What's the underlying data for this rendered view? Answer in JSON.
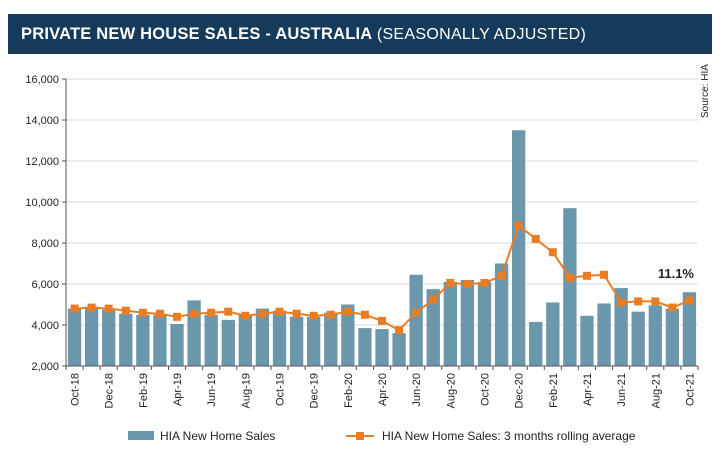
{
  "header": {
    "title": "PRIVATE NEW HOUSE SALES -  AUSTRALIA",
    "subtitle": "(SEASONALLY ADJUSTED)"
  },
  "chart_data": {
    "type": "bar+line",
    "source": "Source: HIA",
    "annotation": "11.1%",
    "y_ticks": [
      "2,000",
      "4,000",
      "6,000",
      "8,000",
      "10,000",
      "12,000",
      "14,000",
      "16,000"
    ],
    "ylim": [
      2000,
      16000
    ],
    "categories": [
      "Oct-18",
      "Nov-18",
      "Dec-18",
      "Jan-19",
      "Feb-19",
      "Mar-19",
      "Apr-19",
      "May-19",
      "Jun-19",
      "Jul-19",
      "Aug-19",
      "Sep-19",
      "Oct-19",
      "Nov-19",
      "Dec-19",
      "Jan-20",
      "Feb-20",
      "Mar-20",
      "Apr-20",
      "May-20",
      "Jun-20",
      "Jul-20",
      "Aug-20",
      "Sep-20",
      "Oct-20",
      "Nov-20",
      "Dec-20",
      "Jan-21",
      "Feb-21",
      "Mar-21",
      "Apr-21",
      "May-21",
      "Jun-21",
      "Jul-21",
      "Aug-21",
      "Sep-21",
      "Oct-21"
    ],
    "x_tick_labels": [
      "Oct-18",
      "Dec-18",
      "Feb-19",
      "Apr-19",
      "Jun-19",
      "Aug-19",
      "Oct-19",
      "Dec-19",
      "Feb-20",
      "Apr-20",
      "Jun-20",
      "Aug-20",
      "Oct-20",
      "Dec-20",
      "Feb-21",
      "Apr-21",
      "Jun-21",
      "Aug-21",
      "Oct-21"
    ],
    "series": [
      {
        "name": "HIA New Home Sales",
        "kind": "bar",
        "color": "#6a97ab",
        "values": [
          4800,
          4900,
          4750,
          4550,
          4500,
          4500,
          4050,
          5200,
          4500,
          4250,
          4500,
          4800,
          4700,
          4400,
          4400,
          4600,
          5000,
          3850,
          3800,
          3600,
          6450,
          5750,
          6100,
          6200,
          6100,
          7000,
          13500,
          4150,
          5100,
          9700,
          4450,
          5050,
          5800,
          4650,
          4950,
          4800,
          5600
        ]
      },
      {
        "name": "HIA New Home Sales: 3 months rolling average",
        "kind": "line",
        "color": "#ea7d24",
        "values": [
          4800,
          4850,
          4800,
          4700,
          4600,
          4550,
          4400,
          4550,
          4600,
          4650,
          4450,
          4550,
          4650,
          4550,
          4450,
          4500,
          4650,
          4500,
          4200,
          3750,
          4600,
          5250,
          6050,
          6000,
          6050,
          6400,
          8850,
          8200,
          7550,
          6300,
          6400,
          6450,
          5100,
          5150,
          5150,
          4850,
          5200
        ]
      }
    ]
  }
}
